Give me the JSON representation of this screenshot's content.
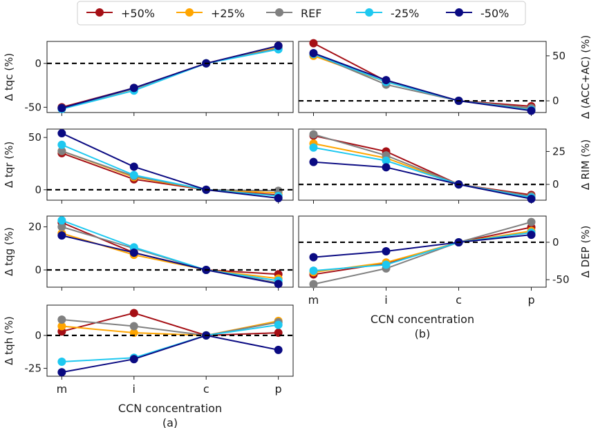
{
  "legend": {
    "entries": [
      {
        "name": "+50%",
        "color": "#a50f15"
      },
      {
        "name": "+25%",
        "color": "#ffa500"
      },
      {
        "name": "REF",
        "color": "#808080"
      },
      {
        "name": "-25%",
        "color": "#1ec8f0"
      },
      {
        "name": "-50%",
        "color": "#0a0a82"
      }
    ]
  },
  "chart_data": [
    {
      "type": "line",
      "id": "tqc",
      "ylabel": "Δ tqc (%)",
      "ylim": [
        -56,
        25
      ],
      "yticks": [
        -50,
        0
      ],
      "categories": [
        "m",
        "i",
        "c",
        "p"
      ],
      "reference_line": 0,
      "series": [
        {
          "name": "+50%",
          "values": [
            -50,
            -28,
            0,
            20
          ]
        },
        {
          "name": "+25%",
          "values": [
            -51,
            -29,
            0,
            18
          ]
        },
        {
          "name": "REF",
          "values": [
            -51,
            -29,
            0,
            17
          ]
        },
        {
          "name": "-25%",
          "values": [
            -52,
            -31,
            0,
            16
          ]
        },
        {
          "name": "-50%",
          "values": [
            -51,
            -28,
            0,
            20
          ]
        }
      ]
    },
    {
      "type": "line",
      "id": "tqr",
      "ylabel": "Δ tqr (%)",
      "ylim": [
        -10,
        58
      ],
      "yticks": [
        0,
        50
      ],
      "categories": [
        "m",
        "i",
        "c",
        "p"
      ],
      "reference_line": 0,
      "series": [
        {
          "name": "+50%",
          "values": [
            35,
            10,
            0,
            -5
          ]
        },
        {
          "name": "+25%",
          "values": [
            37,
            12,
            0,
            -3
          ]
        },
        {
          "name": "REF",
          "values": [
            37,
            13,
            0,
            -1
          ]
        },
        {
          "name": "-25%",
          "values": [
            43,
            14,
            0,
            -6
          ]
        },
        {
          "name": "-50%",
          "values": [
            54,
            22,
            0,
            -8
          ]
        }
      ]
    },
    {
      "type": "line",
      "id": "tqg",
      "ylabel": "Δ tqg (%)",
      "ylim": [
        -8,
        25
      ],
      "yticks": [
        0,
        20
      ],
      "categories": [
        "m",
        "i",
        "c",
        "p"
      ],
      "reference_line": 0,
      "series": [
        {
          "name": "+50%",
          "values": [
            22,
            8,
            0,
            -2
          ]
        },
        {
          "name": "+25%",
          "values": [
            17,
            7,
            0,
            -4
          ]
        },
        {
          "name": "REF",
          "values": [
            20,
            10,
            0,
            -6
          ]
        },
        {
          "name": "-25%",
          "values": [
            23,
            10.5,
            0,
            -5
          ]
        },
        {
          "name": "-50%",
          "values": [
            16,
            8,
            0,
            -6.5
          ]
        }
      ]
    },
    {
      "type": "line",
      "id": "tqh",
      "ylabel": "Δ tqh (%)",
      "ylim": [
        -31,
        23
      ],
      "yticks": [
        -25,
        0
      ],
      "categories": [
        "m",
        "i",
        "c",
        "p"
      ],
      "reference_line": 0,
      "xlabel": "CCN concentration",
      "caption": "(a)",
      "series": [
        {
          "name": "+50%",
          "values": [
            3,
            17,
            0,
            2
          ]
        },
        {
          "name": "+25%",
          "values": [
            7,
            2,
            0,
            11
          ]
        },
        {
          "name": "REF",
          "values": [
            12,
            7,
            0,
            10
          ]
        },
        {
          "name": "-25%",
          "values": [
            -20,
            -17,
            0,
            8
          ]
        },
        {
          "name": "-50%",
          "values": [
            -28,
            -18,
            0,
            -11
          ]
        }
      ]
    },
    {
      "type": "line",
      "id": "acc",
      "ylabel": "Δ (ACC+AC) (%)",
      "ylim": [
        -13,
        66
      ],
      "yticks": [
        0,
        50
      ],
      "categories": [
        "m",
        "i",
        "c",
        "p"
      ],
      "reference_line": 0,
      "series": [
        {
          "name": "+50%",
          "values": [
            64,
            22,
            0,
            -6
          ]
        },
        {
          "name": "+25%",
          "values": [
            50,
            21,
            0,
            -9
          ]
        },
        {
          "name": "REF",
          "values": [
            52,
            18,
            0,
            -8
          ]
        },
        {
          "name": "-25%",
          "values": [
            52,
            21,
            0,
            -10
          ]
        },
        {
          "name": "-50%",
          "values": [
            53,
            23,
            0,
            -11
          ]
        }
      ]
    },
    {
      "type": "line",
      "id": "rim",
      "ylabel": "Δ RIM (%)",
      "ylim": [
        -12,
        42
      ],
      "yticks": [
        0,
        25
      ],
      "categories": [
        "m",
        "i",
        "c",
        "p"
      ],
      "reference_line": 0,
      "series": [
        {
          "name": "+50%",
          "values": [
            37,
            25,
            0,
            -8
          ]
        },
        {
          "name": "+25%",
          "values": [
            31,
            20,
            0,
            -9
          ]
        },
        {
          "name": "REF",
          "values": [
            38,
            22,
            0,
            -9
          ]
        },
        {
          "name": "-25%",
          "values": [
            28,
            18,
            0,
            -10
          ]
        },
        {
          "name": "-50%",
          "values": [
            17,
            13,
            0,
            -11
          ]
        }
      ]
    },
    {
      "type": "line",
      "id": "dep",
      "ylabel": "Δ DEP (%)",
      "ylim": [
        -60,
        35
      ],
      "yticks": [
        -50,
        0
      ],
      "categories": [
        "m",
        "i",
        "c",
        "p"
      ],
      "reference_line": 0,
      "xlabel": "CCN concentration",
      "caption": "(b)",
      "series": [
        {
          "name": "+50%",
          "values": [
            -43,
            -28,
            0,
            20
          ]
        },
        {
          "name": "+25%",
          "values": [
            -40,
            -27,
            0,
            15
          ]
        },
        {
          "name": "REF",
          "values": [
            -56,
            -35,
            0,
            27
          ]
        },
        {
          "name": "-25%",
          "values": [
            -38,
            -30,
            0,
            13
          ]
        },
        {
          "name": "-50%",
          "values": [
            -20,
            -12,
            0,
            10
          ]
        }
      ]
    }
  ]
}
